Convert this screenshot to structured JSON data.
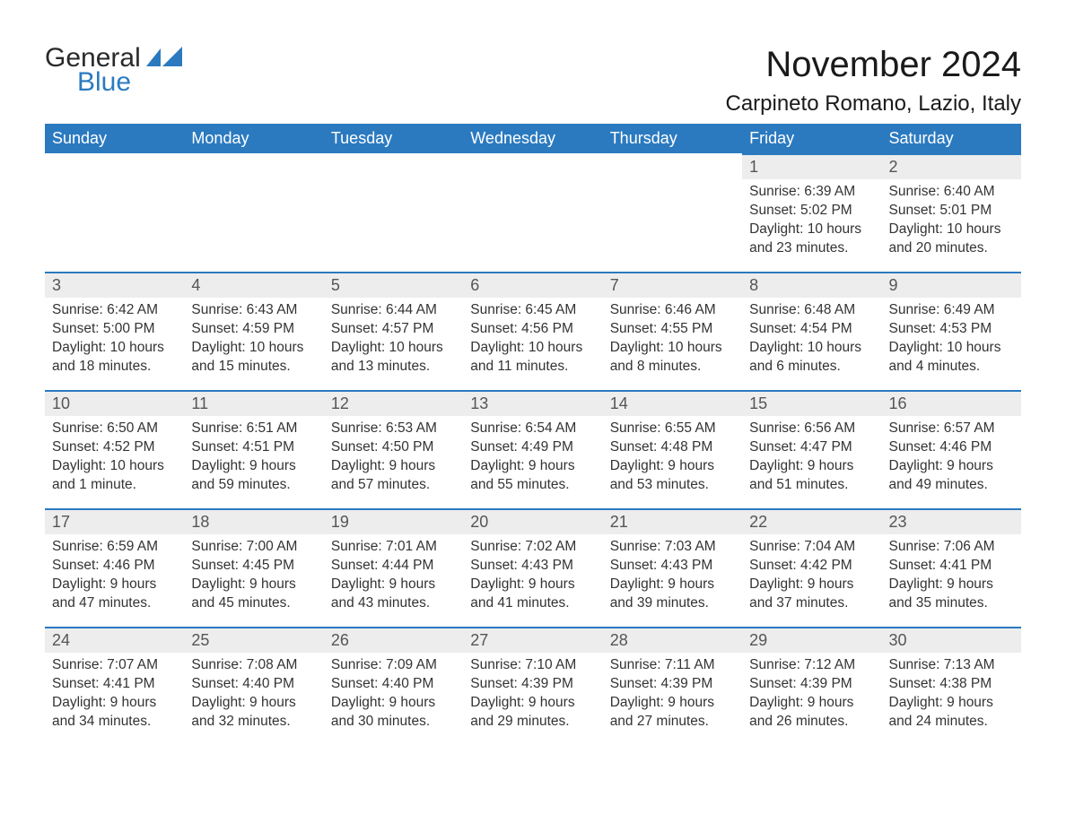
{
  "brand": {
    "text1": "General",
    "text2": "Blue"
  },
  "title": "November 2024",
  "location": "Carpineto Romano, Lazio, Italy",
  "colors": {
    "header_bg": "#2b7ac0",
    "header_text": "#ffffff",
    "daynum_bg": "#ededed",
    "daynum_border": "#2b7ac0",
    "body_text": "#333333",
    "page_bg": "#ffffff",
    "logo_accent": "#2b7ac0"
  },
  "typography": {
    "title_fontsize": 40,
    "location_fontsize": 24,
    "header_fontsize": 18,
    "daynum_fontsize": 18,
    "body_fontsize": 15.5
  },
  "weekdays": [
    "Sunday",
    "Monday",
    "Tuesday",
    "Wednesday",
    "Thursday",
    "Friday",
    "Saturday"
  ],
  "weeks": [
    [
      null,
      null,
      null,
      null,
      null,
      {
        "n": "1",
        "sunrise": "Sunrise: 6:39 AM",
        "sunset": "Sunset: 5:02 PM",
        "daylight": "Daylight: 10 hours and 23 minutes."
      },
      {
        "n": "2",
        "sunrise": "Sunrise: 6:40 AM",
        "sunset": "Sunset: 5:01 PM",
        "daylight": "Daylight: 10 hours and 20 minutes."
      }
    ],
    [
      {
        "n": "3",
        "sunrise": "Sunrise: 6:42 AM",
        "sunset": "Sunset: 5:00 PM",
        "daylight": "Daylight: 10 hours and 18 minutes."
      },
      {
        "n": "4",
        "sunrise": "Sunrise: 6:43 AM",
        "sunset": "Sunset: 4:59 PM",
        "daylight": "Daylight: 10 hours and 15 minutes."
      },
      {
        "n": "5",
        "sunrise": "Sunrise: 6:44 AM",
        "sunset": "Sunset: 4:57 PM",
        "daylight": "Daylight: 10 hours and 13 minutes."
      },
      {
        "n": "6",
        "sunrise": "Sunrise: 6:45 AM",
        "sunset": "Sunset: 4:56 PM",
        "daylight": "Daylight: 10 hours and 11 minutes."
      },
      {
        "n": "7",
        "sunrise": "Sunrise: 6:46 AM",
        "sunset": "Sunset: 4:55 PM",
        "daylight": "Daylight: 10 hours and 8 minutes."
      },
      {
        "n": "8",
        "sunrise": "Sunrise: 6:48 AM",
        "sunset": "Sunset: 4:54 PM",
        "daylight": "Daylight: 10 hours and 6 minutes."
      },
      {
        "n": "9",
        "sunrise": "Sunrise: 6:49 AM",
        "sunset": "Sunset: 4:53 PM",
        "daylight": "Daylight: 10 hours and 4 minutes."
      }
    ],
    [
      {
        "n": "10",
        "sunrise": "Sunrise: 6:50 AM",
        "sunset": "Sunset: 4:52 PM",
        "daylight": "Daylight: 10 hours and 1 minute."
      },
      {
        "n": "11",
        "sunrise": "Sunrise: 6:51 AM",
        "sunset": "Sunset: 4:51 PM",
        "daylight": "Daylight: 9 hours and 59 minutes."
      },
      {
        "n": "12",
        "sunrise": "Sunrise: 6:53 AM",
        "sunset": "Sunset: 4:50 PM",
        "daylight": "Daylight: 9 hours and 57 minutes."
      },
      {
        "n": "13",
        "sunrise": "Sunrise: 6:54 AM",
        "sunset": "Sunset: 4:49 PM",
        "daylight": "Daylight: 9 hours and 55 minutes."
      },
      {
        "n": "14",
        "sunrise": "Sunrise: 6:55 AM",
        "sunset": "Sunset: 4:48 PM",
        "daylight": "Daylight: 9 hours and 53 minutes."
      },
      {
        "n": "15",
        "sunrise": "Sunrise: 6:56 AM",
        "sunset": "Sunset: 4:47 PM",
        "daylight": "Daylight: 9 hours and 51 minutes."
      },
      {
        "n": "16",
        "sunrise": "Sunrise: 6:57 AM",
        "sunset": "Sunset: 4:46 PM",
        "daylight": "Daylight: 9 hours and 49 minutes."
      }
    ],
    [
      {
        "n": "17",
        "sunrise": "Sunrise: 6:59 AM",
        "sunset": "Sunset: 4:46 PM",
        "daylight": "Daylight: 9 hours and 47 minutes."
      },
      {
        "n": "18",
        "sunrise": "Sunrise: 7:00 AM",
        "sunset": "Sunset: 4:45 PM",
        "daylight": "Daylight: 9 hours and 45 minutes."
      },
      {
        "n": "19",
        "sunrise": "Sunrise: 7:01 AM",
        "sunset": "Sunset: 4:44 PM",
        "daylight": "Daylight: 9 hours and 43 minutes."
      },
      {
        "n": "20",
        "sunrise": "Sunrise: 7:02 AM",
        "sunset": "Sunset: 4:43 PM",
        "daylight": "Daylight: 9 hours and 41 minutes."
      },
      {
        "n": "21",
        "sunrise": "Sunrise: 7:03 AM",
        "sunset": "Sunset: 4:43 PM",
        "daylight": "Daylight: 9 hours and 39 minutes."
      },
      {
        "n": "22",
        "sunrise": "Sunrise: 7:04 AM",
        "sunset": "Sunset: 4:42 PM",
        "daylight": "Daylight: 9 hours and 37 minutes."
      },
      {
        "n": "23",
        "sunrise": "Sunrise: 7:06 AM",
        "sunset": "Sunset: 4:41 PM",
        "daylight": "Daylight: 9 hours and 35 minutes."
      }
    ],
    [
      {
        "n": "24",
        "sunrise": "Sunrise: 7:07 AM",
        "sunset": "Sunset: 4:41 PM",
        "daylight": "Daylight: 9 hours and 34 minutes."
      },
      {
        "n": "25",
        "sunrise": "Sunrise: 7:08 AM",
        "sunset": "Sunset: 4:40 PM",
        "daylight": "Daylight: 9 hours and 32 minutes."
      },
      {
        "n": "26",
        "sunrise": "Sunrise: 7:09 AM",
        "sunset": "Sunset: 4:40 PM",
        "daylight": "Daylight: 9 hours and 30 minutes."
      },
      {
        "n": "27",
        "sunrise": "Sunrise: 7:10 AM",
        "sunset": "Sunset: 4:39 PM",
        "daylight": "Daylight: 9 hours and 29 minutes."
      },
      {
        "n": "28",
        "sunrise": "Sunrise: 7:11 AM",
        "sunset": "Sunset: 4:39 PM",
        "daylight": "Daylight: 9 hours and 27 minutes."
      },
      {
        "n": "29",
        "sunrise": "Sunrise: 7:12 AM",
        "sunset": "Sunset: 4:39 PM",
        "daylight": "Daylight: 9 hours and 26 minutes."
      },
      {
        "n": "30",
        "sunrise": "Sunrise: 7:13 AM",
        "sunset": "Sunset: 4:38 PM",
        "daylight": "Daylight: 9 hours and 24 minutes."
      }
    ]
  ]
}
